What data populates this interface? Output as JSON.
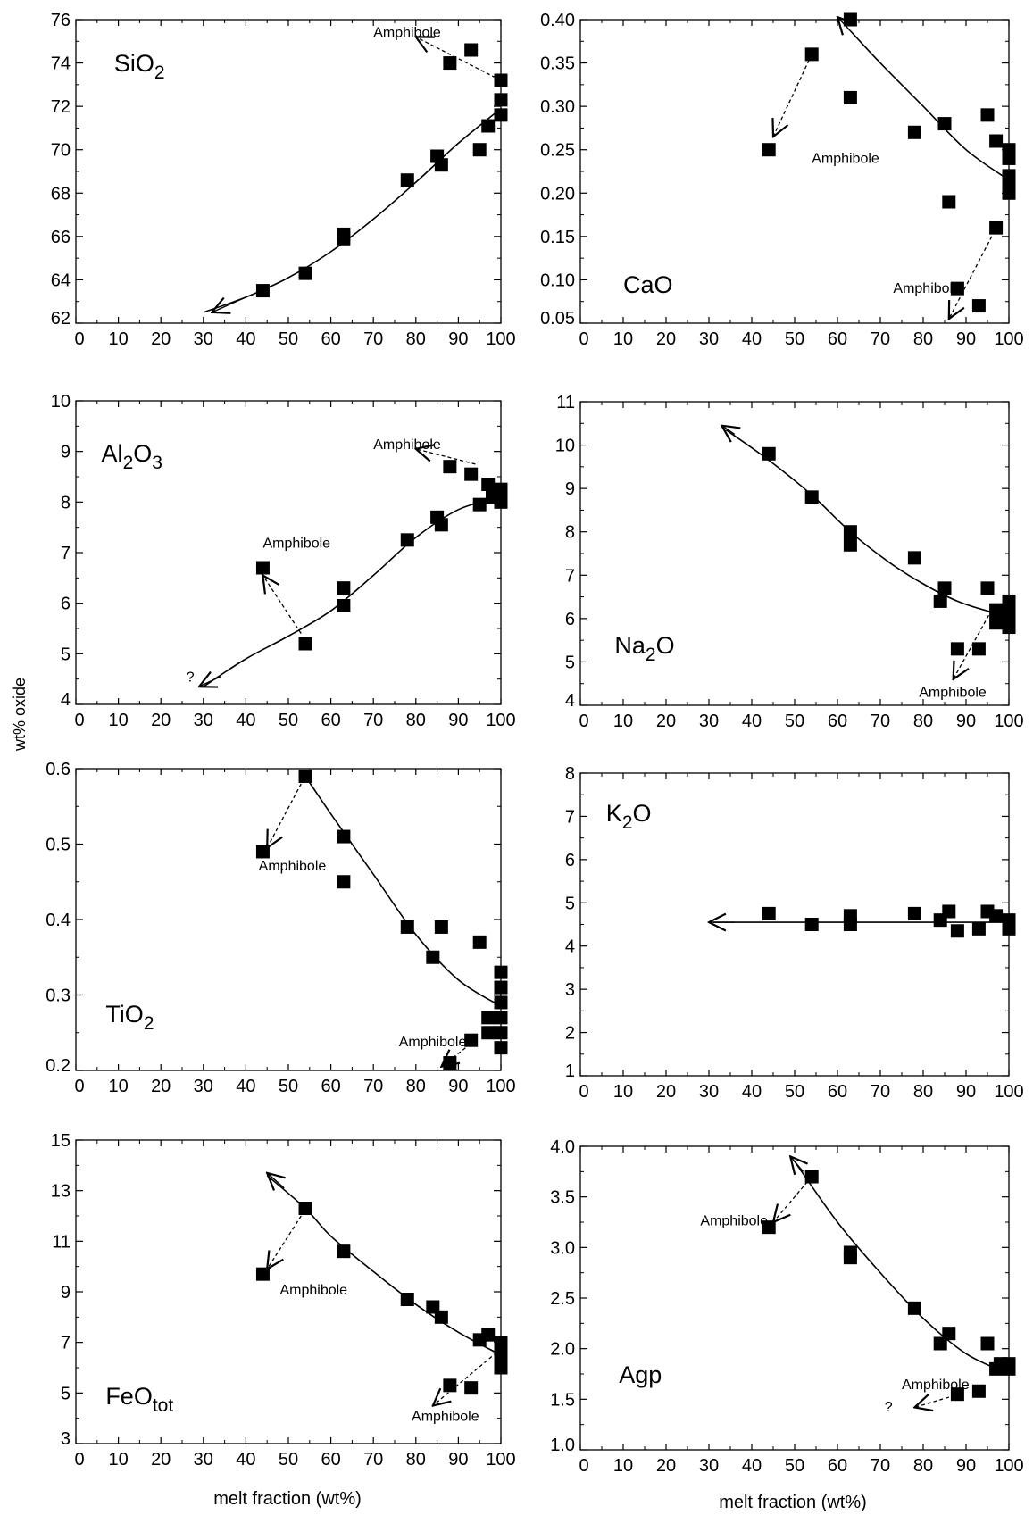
{
  "figure": {
    "ylabel": "wt% oxide",
    "xlabel": "melt fraction (wt%)"
  },
  "chart_data": [
    {
      "type": "scatter",
      "title": "SiO2",
      "title_main": "SiO",
      "title_sub": "2",
      "xlim": [
        0,
        100
      ],
      "ylim": [
        62,
        76
      ],
      "x_ticks": [
        0,
        10,
        20,
        30,
        40,
        50,
        60,
        70,
        80,
        90,
        100
      ],
      "y_ticks": [
        62,
        64,
        66,
        68,
        70,
        72,
        74,
        76
      ],
      "y_tick_labels": [
        "62",
        "64",
        "66",
        "68",
        "70",
        "72",
        "74",
        "76"
      ],
      "points": [
        [
          44,
          63.5
        ],
        [
          54,
          64.3
        ],
        [
          63,
          65.9
        ],
        [
          63,
          66.1
        ],
        [
          78,
          68.6
        ],
        [
          85,
          69.7
        ],
        [
          86,
          69.3
        ],
        [
          88,
          74
        ],
        [
          93,
          74.6
        ],
        [
          95,
          70
        ],
        [
          97,
          71.1
        ],
        [
          100,
          71.6
        ],
        [
          100,
          72.3
        ],
        [
          100,
          73.2
        ]
      ],
      "curve": [
        [
          30,
          62.5
        ],
        [
          40,
          63.2
        ],
        [
          50,
          64.1
        ],
        [
          60,
          65.3
        ],
        [
          70,
          66.8
        ],
        [
          80,
          68.5
        ],
        [
          90,
          70.3
        ],
        [
          100,
          71.9
        ]
      ],
      "arrows": [
        {
          "from": [
            40,
            63.2
          ],
          "to": [
            32,
            62.5
          ]
        }
      ],
      "dashed_arrows": [
        {
          "from": [
            100,
            73.2
          ],
          "to": [
            80,
            75.2
          ]
        }
      ],
      "annotations": [
        {
          "text": "Amphibole",
          "x": 70,
          "y": 75.2
        }
      ]
    },
    {
      "type": "scatter",
      "title": "CaO",
      "title_main": "CaO",
      "title_sub": "",
      "xlim": [
        0,
        100
      ],
      "ylim": [
        0.05,
        0.4
      ],
      "x_ticks": [
        0,
        10,
        20,
        30,
        40,
        50,
        60,
        70,
        80,
        90,
        100
      ],
      "y_ticks": [
        0.05,
        0.1,
        0.15,
        0.2,
        0.25,
        0.3,
        0.35,
        0.4
      ],
      "y_tick_labels": [
        "0.05",
        "0.10",
        "0.15",
        "0.20",
        "0.25",
        "0.30",
        "0.35",
        "0.40"
      ],
      "points": [
        [
          44,
          0.25
        ],
        [
          54,
          0.36
        ],
        [
          63,
          0.4
        ],
        [
          63,
          0.31
        ],
        [
          78,
          0.27
        ],
        [
          85,
          0.28
        ],
        [
          86,
          0.19
        ],
        [
          88,
          0.09
        ],
        [
          93,
          0.07
        ],
        [
          95,
          0.29
        ],
        [
          97,
          0.26
        ],
        [
          97,
          0.16
        ],
        [
          100,
          0.25
        ],
        [
          100,
          0.24
        ],
        [
          100,
          0.22
        ],
        [
          100,
          0.21
        ],
        [
          100,
          0.2
        ]
      ],
      "curve": [
        [
          63,
          0.387
        ],
        [
          70,
          0.35
        ],
        [
          80,
          0.3
        ],
        [
          90,
          0.25
        ],
        [
          100,
          0.215
        ]
      ],
      "arrows": [
        {
          "from": [
            63,
            0.387
          ],
          "to": [
            60,
            0.403
          ]
        }
      ],
      "dashed_arrows": [
        {
          "from": [
            54,
            0.36
          ],
          "to": [
            45,
            0.265
          ]
        },
        {
          "from": [
            96,
            0.15
          ],
          "to": [
            86,
            0.055
          ]
        }
      ],
      "annotations": [
        {
          "text": "Amphibole",
          "x": 54,
          "y": 0.235
        },
        {
          "text": "Amphibole",
          "x": 73,
          "y": 0.085
        }
      ]
    },
    {
      "type": "scatter",
      "title": "Al2O3",
      "title_main": "Al2O3",
      "title_sub": "",
      "xlim": [
        0,
        100
      ],
      "ylim": [
        4,
        10
      ],
      "x_ticks": [
        0,
        10,
        20,
        30,
        40,
        50,
        60,
        70,
        80,
        90,
        100
      ],
      "y_ticks": [
        4,
        5,
        6,
        7,
        8,
        9,
        10
      ],
      "y_tick_labels": [
        "4",
        "5",
        "6",
        "7",
        "8",
        "9",
        "10"
      ],
      "points": [
        [
          44,
          6.7
        ],
        [
          54,
          5.2
        ],
        [
          63,
          6.3
        ],
        [
          63,
          5.95
        ],
        [
          78,
          7.25
        ],
        [
          85,
          7.7
        ],
        [
          86,
          7.55
        ],
        [
          88,
          8.7
        ],
        [
          93,
          8.55
        ],
        [
          95,
          7.95
        ],
        [
          97,
          8.35
        ],
        [
          98,
          8.1
        ],
        [
          100,
          8.25
        ],
        [
          100,
          8.0
        ]
      ],
      "curve": [
        [
          30,
          4.35
        ],
        [
          40,
          4.9
        ],
        [
          50,
          5.35
        ],
        [
          60,
          5.85
        ],
        [
          70,
          6.55
        ],
        [
          80,
          7.3
        ],
        [
          90,
          7.85
        ],
        [
          100,
          8.1
        ]
      ],
      "arrows": [
        {
          "from": [
            34,
            4.55
          ],
          "to": [
            29,
            4.35
          ]
        }
      ],
      "dashed_arrows": [
        {
          "from": [
            53,
            5.4
          ],
          "to": [
            44,
            6.55
          ]
        },
        {
          "from": [
            94,
            8.75
          ],
          "to": [
            80,
            9.05
          ]
        }
      ],
      "annotations": [
        {
          "text": "Amphibole",
          "x": 44,
          "y": 7.1
        },
        {
          "text": "Amphibole",
          "x": 70,
          "y": 9.05
        },
        {
          "text": "?",
          "x": 26,
          "y": 4.45
        }
      ]
    },
    {
      "type": "scatter",
      "title": "Na2O",
      "title_main": "Na2O",
      "title_sub": "",
      "xlim": [
        0,
        100
      ],
      "ylim": [
        4,
        11
      ],
      "x_ticks": [
        0,
        10,
        20,
        30,
        40,
        50,
        60,
        70,
        80,
        90,
        100
      ],
      "y_ticks": [
        4,
        5,
        6,
        7,
        8,
        9,
        10,
        11
      ],
      "y_tick_labels": [
        "4",
        "5",
        "6",
        "7",
        "8",
        "9",
        "10",
        "11"
      ],
      "points": [
        [
          44,
          9.8
        ],
        [
          54,
          8.8
        ],
        [
          63,
          8.0
        ],
        [
          63,
          7.7
        ],
        [
          78,
          7.4
        ],
        [
          84,
          6.4
        ],
        [
          85,
          6.7
        ],
        [
          88,
          5.3
        ],
        [
          93,
          5.3
        ],
        [
          95,
          6.7
        ],
        [
          97,
          6.2
        ],
        [
          97,
          5.9
        ],
        [
          100,
          6.4
        ],
        [
          100,
          6.1
        ],
        [
          100,
          5.8
        ]
      ],
      "curve": [
        [
          34,
          10.35
        ],
        [
          44,
          9.65
        ],
        [
          54,
          8.85
        ],
        [
          63,
          8.0
        ],
        [
          72,
          7.3
        ],
        [
          80,
          6.8
        ],
        [
          88,
          6.4
        ],
        [
          96,
          6.15
        ],
        [
          100,
          6.1
        ]
      ],
      "arrows": [
        {
          "from": [
            36,
            10.25
          ],
          "to": [
            33,
            10.45
          ]
        }
      ],
      "dashed_arrows": [
        {
          "from": [
            96,
            6.2
          ],
          "to": [
            87,
            4.6
          ]
        }
      ],
      "annotations": [
        {
          "text": "Amphibole",
          "x": 79,
          "y": 4.2
        }
      ]
    },
    {
      "type": "scatter",
      "title": "TiO2",
      "title_main": "TiO",
      "title_sub": "2",
      "xlim": [
        0,
        100
      ],
      "ylim": [
        0.2,
        0.6
      ],
      "x_ticks": [
        0,
        10,
        20,
        30,
        40,
        50,
        60,
        70,
        80,
        90,
        100
      ],
      "y_ticks": [
        0.2,
        0.3,
        0.4,
        0.5,
        0.6
      ],
      "y_tick_labels": [
        "0.2",
        "0.3",
        "0.4",
        "0.5",
        "0.6"
      ],
      "points": [
        [
          44,
          0.49
        ],
        [
          54,
          0.59
        ],
        [
          63,
          0.51
        ],
        [
          63,
          0.45
        ],
        [
          78,
          0.39
        ],
        [
          84,
          0.35
        ],
        [
          86,
          0.39
        ],
        [
          88,
          0.21
        ],
        [
          93,
          0.24
        ],
        [
          95,
          0.37
        ],
        [
          97,
          0.27
        ],
        [
          97,
          0.25
        ],
        [
          100,
          0.33
        ],
        [
          100,
          0.31
        ],
        [
          100,
          0.29
        ],
        [
          100,
          0.27
        ],
        [
          100,
          0.25
        ],
        [
          100,
          0.23
        ]
      ],
      "curve": [
        [
          54,
          0.59
        ],
        [
          60,
          0.54
        ],
        [
          70,
          0.46
        ],
        [
          80,
          0.38
        ],
        [
          90,
          0.32
        ],
        [
          100,
          0.285
        ]
      ],
      "arrows": [],
      "dashed_arrows": [
        {
          "from": [
            53,
            0.58
          ],
          "to": [
            45,
            0.495
          ]
        },
        {
          "from": [
            94,
            0.24
          ],
          "to": [
            86,
            0.205
          ]
        }
      ],
      "annotations": [
        {
          "text": "Amphibole",
          "x": 43,
          "y": 0.465
        },
        {
          "text": "Amphibole",
          "x": 76,
          "y": 0.232
        }
      ]
    },
    {
      "type": "scatter",
      "title": "K2O",
      "title_main": "K",
      "title_sub": "2",
      "title_tail": "O",
      "xlim": [
        0,
        100
      ],
      "ylim": [
        1,
        8
      ],
      "x_ticks": [
        0,
        10,
        20,
        30,
        40,
        50,
        60,
        70,
        80,
        90,
        100
      ],
      "y_ticks": [
        1,
        2,
        3,
        4,
        5,
        6,
        7,
        8
      ],
      "y_tick_labels": [
        "1",
        "2",
        "3",
        "4",
        "5",
        "6",
        "7",
        "8"
      ],
      "points": [
        [
          44,
          4.75
        ],
        [
          54,
          4.5
        ],
        [
          63,
          4.7
        ],
        [
          63,
          4.5
        ],
        [
          78,
          4.75
        ],
        [
          84,
          4.6
        ],
        [
          86,
          4.8
        ],
        [
          88,
          4.35
        ],
        [
          93,
          4.4
        ],
        [
          95,
          4.8
        ],
        [
          97,
          4.7
        ],
        [
          100,
          4.6
        ],
        [
          100,
          4.4
        ]
      ],
      "curve": [
        [
          31,
          4.55
        ],
        [
          100,
          4.55
        ]
      ],
      "arrows": [
        {
          "from": [
            36,
            4.55
          ],
          "to": [
            30,
            4.55
          ]
        }
      ],
      "dashed_arrows": [],
      "annotations": []
    },
    {
      "type": "scatter",
      "title": "FeOtot",
      "title_main": "FeO",
      "title_sub": "tot",
      "xlim": [
        0,
        100
      ],
      "ylim": [
        3,
        15
      ],
      "x_ticks": [
        0,
        10,
        20,
        30,
        40,
        50,
        60,
        70,
        80,
        90,
        100
      ],
      "y_ticks": [
        3,
        5,
        7,
        9,
        11,
        13,
        15
      ],
      "y_tick_labels": [
        "3",
        "5",
        "7",
        "9",
        "11",
        "13",
        "15"
      ],
      "points": [
        [
          44,
          9.7
        ],
        [
          54,
          12.3
        ],
        [
          63,
          10.6
        ],
        [
          78,
          8.7
        ],
        [
          84,
          8.4
        ],
        [
          86,
          8.0
        ],
        [
          88,
          5.3
        ],
        [
          93,
          5.2
        ],
        [
          95,
          7.1
        ],
        [
          97,
          7.3
        ],
        [
          100,
          7.0
        ],
        [
          100,
          6.5
        ],
        [
          100,
          6.0
        ]
      ],
      "curve": [
        [
          45,
          13.6
        ],
        [
          54,
          12.3
        ],
        [
          60,
          11.2
        ],
        [
          70,
          9.8
        ],
        [
          80,
          8.5
        ],
        [
          90,
          7.4
        ],
        [
          100,
          6.5
        ]
      ],
      "arrows": [
        {
          "from": [
            49,
            13.1
          ],
          "to": [
            45,
            13.7
          ]
        }
      ],
      "dashed_arrows": [
        {
          "from": [
            53,
            12.0
          ],
          "to": [
            45,
            9.9
          ]
        },
        {
          "from": [
            99,
            6.6
          ],
          "to": [
            84,
            4.5
          ]
        }
      ],
      "annotations": [
        {
          "text": "Amphibole",
          "x": 48,
          "y": 8.9
        },
        {
          "text": "Amphibole",
          "x": 79,
          "y": 3.9
        }
      ]
    },
    {
      "type": "scatter",
      "title": "Agp",
      "title_main": "Agp",
      "title_sub": "",
      "xlim": [
        0,
        100
      ],
      "ylim": [
        1.0,
        4.0
      ],
      "x_ticks": [
        0,
        10,
        20,
        30,
        40,
        50,
        60,
        70,
        80,
        90,
        100
      ],
      "y_ticks": [
        1.0,
        1.5,
        2.0,
        2.5,
        3.0,
        3.5,
        4.0
      ],
      "y_tick_labels": [
        "1.0",
        "1.5",
        "2.0",
        "2.5",
        "3.0",
        "3.5",
        "4.0"
      ],
      "points": [
        [
          44,
          3.2
        ],
        [
          54,
          3.7
        ],
        [
          63,
          2.95
        ],
        [
          63,
          2.9
        ],
        [
          78,
          2.4
        ],
        [
          84,
          2.05
        ],
        [
          86,
          2.15
        ],
        [
          88,
          1.55
        ],
        [
          93,
          1.58
        ],
        [
          95,
          2.05
        ],
        [
          97,
          1.8
        ],
        [
          98,
          1.85
        ],
        [
          100,
          1.85
        ],
        [
          100,
          1.8
        ]
      ],
      "curve": [
        [
          50,
          3.85
        ],
        [
          60,
          3.25
        ],
        [
          70,
          2.75
        ],
        [
          80,
          2.3
        ],
        [
          90,
          1.95
        ],
        [
          100,
          1.75
        ]
      ],
      "arrows": [
        {
          "from": [
            52,
            3.75
          ],
          "to": [
            49,
            3.9
          ]
        }
      ],
      "dashed_arrows": [
        {
          "from": [
            53,
            3.65
          ],
          "to": [
            45,
            3.25
          ]
        },
        {
          "from": [
            86,
            1.52
          ],
          "to": [
            78,
            1.42
          ]
        }
      ],
      "annotations": [
        {
          "text": "Amphibole",
          "x": 28,
          "y": 3.22
        },
        {
          "text": "Amphibole",
          "x": 75,
          "y": 1.6
        },
        {
          "text": "?",
          "x": 71,
          "y": 1.38
        }
      ]
    }
  ]
}
